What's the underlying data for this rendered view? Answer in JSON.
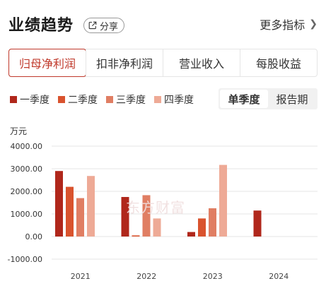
{
  "header": {
    "title": "业绩趋势",
    "share_label": "分享",
    "more_label": "更多指标"
  },
  "tabs": [
    {
      "label": "归母净利润",
      "active": true
    },
    {
      "label": "扣非净利润",
      "active": false
    },
    {
      "label": "营业收入",
      "active": false
    },
    {
      "label": "每股收益",
      "active": false
    }
  ],
  "period_toggle": {
    "options": [
      "单季度",
      "报告期"
    ],
    "selected": "单季度"
  },
  "unit_label": "万元",
  "watermark": "东方财富",
  "colors": {
    "accent": "#c0392b",
    "q1": "#b0271b",
    "q2": "#d9532e",
    "q3": "#e07e63",
    "q4": "#eeaa96"
  },
  "chart_data": {
    "type": "bar",
    "categories": [
      "2021",
      "2022",
      "2023",
      "2024"
    ],
    "series": [
      {
        "name": "一季度",
        "values": [
          2900,
          1750,
          200,
          1150
        ]
      },
      {
        "name": "二季度",
        "values": [
          2200,
          50,
          800,
          null
        ]
      },
      {
        "name": "三季度",
        "values": [
          1700,
          1830,
          1250,
          null
        ]
      },
      {
        "name": "四季度",
        "values": [
          2680,
          800,
          3170,
          null
        ]
      }
    ],
    "yticks": [
      "4000.00",
      "3000.00",
      "2000.00",
      "1000.00",
      "0.00",
      "-1000.00"
    ],
    "ylim": [
      -1000,
      4000
    ],
    "grid": true,
    "legend": "top-left"
  }
}
